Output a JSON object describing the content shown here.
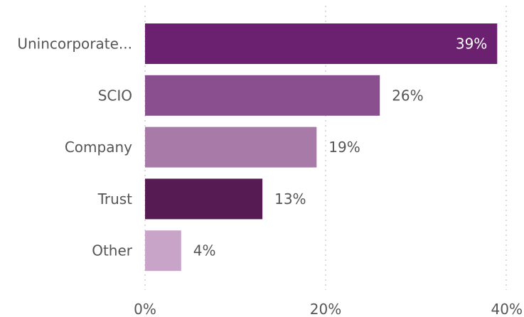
{
  "chart_data": {
    "type": "bar",
    "orientation": "horizontal",
    "categories": [
      "Unincorporate...",
      "SCIO",
      "Company",
      "Trust",
      "Other"
    ],
    "values": [
      39,
      26,
      19,
      13,
      4
    ],
    "data_labels": [
      "39%",
      "26%",
      "19%",
      "13%",
      "4%"
    ],
    "bar_colors": [
      "#6b2170",
      "#8a4f8e",
      "#a87aa8",
      "#551b52",
      "#c8a4c8"
    ],
    "x_ticks": [
      0,
      20,
      40
    ],
    "x_tick_labels": [
      "0%",
      "20%",
      "40%"
    ],
    "xlim": [
      0,
      40
    ],
    "grid": true,
    "legend": "none",
    "title": "",
    "xlabel": "",
    "ylabel": ""
  }
}
